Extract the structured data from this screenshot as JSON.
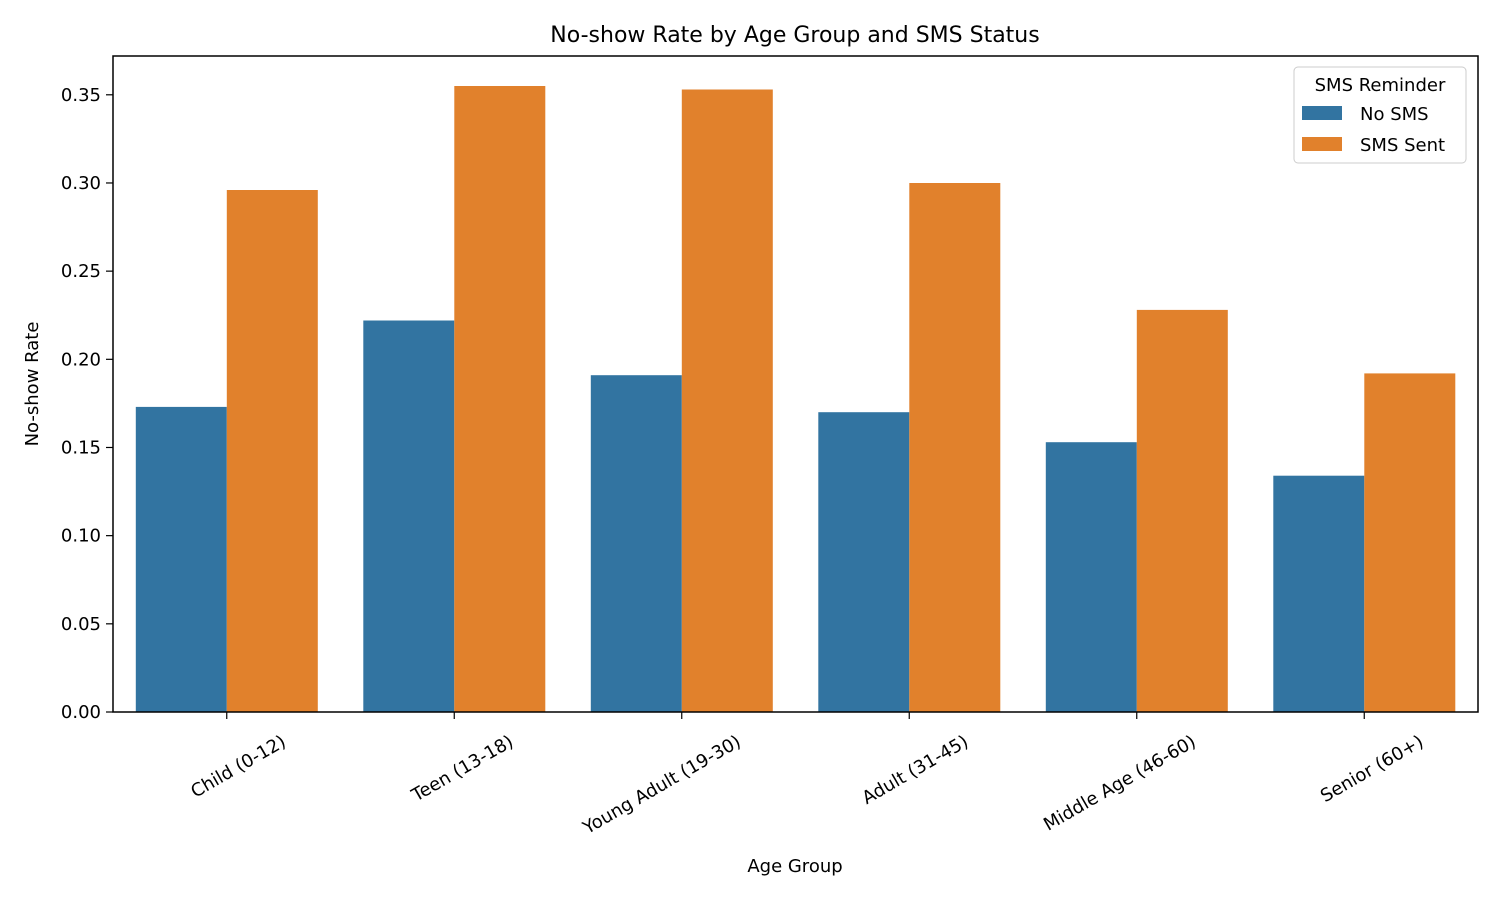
{
  "chart_data": {
    "type": "bar",
    "title": "No-show Rate by Age Group and SMS Status",
    "xlabel": "Age Group",
    "ylabel": "No-show Rate",
    "categories": [
      "Child (0-12)",
      "Teen (13-18)",
      "Young Adult (19-30)",
      "Adult (31-45)",
      "Middle Age (46-60)",
      "Senior (60+)"
    ],
    "series": [
      {
        "name": "No SMS",
        "color": "#3274a1",
        "values": [
          0.173,
          0.222,
          0.191,
          0.17,
          0.153,
          0.134
        ]
      },
      {
        "name": "SMS Sent",
        "color": "#e1812c",
        "values": [
          0.296,
          0.355,
          0.353,
          0.3,
          0.228,
          0.192
        ]
      }
    ],
    "ylim": [
      0,
      0.372
    ],
    "yticks": [
      0.0,
      0.05,
      0.1,
      0.15,
      0.2,
      0.25,
      0.3,
      0.35
    ],
    "ytick_labels": [
      "0.00",
      "0.05",
      "0.10",
      "0.15",
      "0.20",
      "0.25",
      "0.30",
      "0.35"
    ],
    "grid": false,
    "legend": {
      "title": "SMS Reminder",
      "position": "top-right"
    }
  }
}
